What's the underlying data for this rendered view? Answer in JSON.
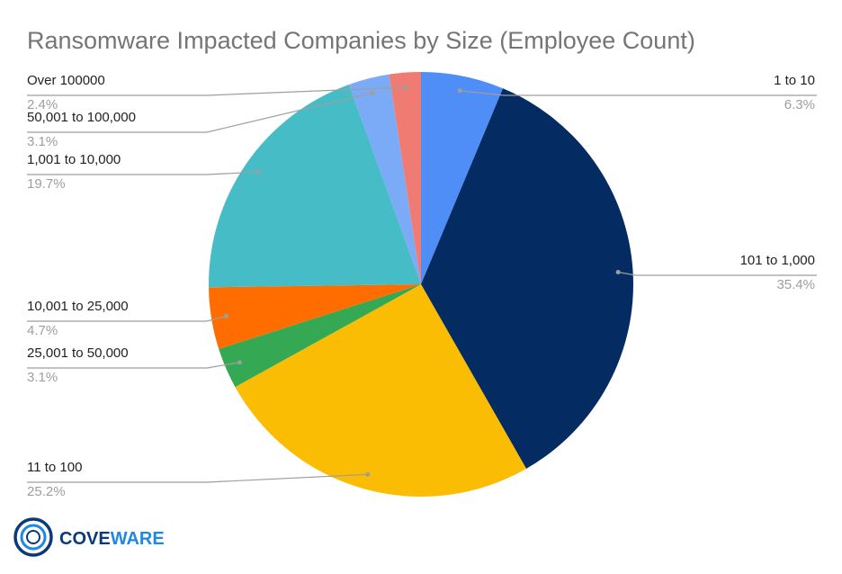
{
  "chart_data": {
    "type": "pie",
    "title": "Ransomware Impacted Companies by Size (Employee Count)",
    "slices": [
      {
        "label": "1 to 10",
        "value": 6.3,
        "display": "6.3%",
        "color": "#4f8ef7"
      },
      {
        "label": "101 to 1,000",
        "value": 35.4,
        "display": "35.4%",
        "color": "#042b62"
      },
      {
        "label": "11 to 100",
        "value": 25.2,
        "display": "25.2%",
        "color": "#fbbc04"
      },
      {
        "label": "25,001 to 50,000",
        "value": 3.1,
        "display": "3.1%",
        "color": "#34a853"
      },
      {
        "label": "10,001 to 25,000",
        "value": 4.7,
        "display": "4.7%",
        "color": "#ff6d01"
      },
      {
        "label": "1,001 to 10,000",
        "value": 19.7,
        "display": "19.7%",
        "color": "#46bdc6"
      },
      {
        "label": "50,001 to 100,000",
        "value": 3.1,
        "display": "3.1%",
        "color": "#7baaf7"
      },
      {
        "label": "Over 100000",
        "value": 2.4,
        "display": "2.4%",
        "color": "#f07b72"
      }
    ],
    "legend": "none"
  },
  "branding": {
    "brand_first": "COVE",
    "brand_second": "WARE",
    "brand_first_color": "#0b3a7a",
    "brand_second_color": "#1e88e5"
  }
}
